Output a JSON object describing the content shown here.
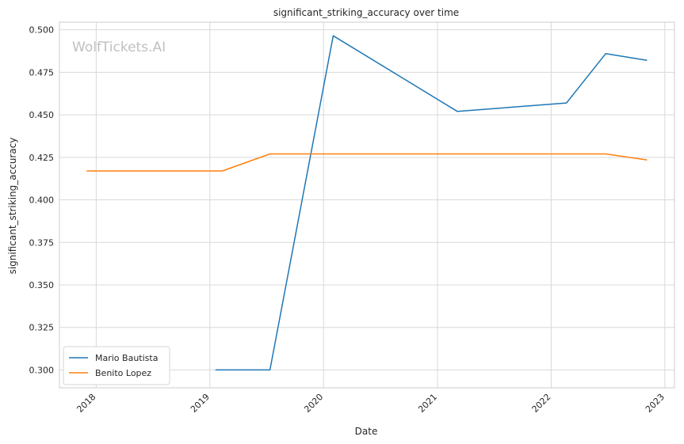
{
  "chart_data": {
    "type": "line",
    "title": "significant_striking_accuracy over time",
    "xlabel": "Date",
    "ylabel": "significant_striking_accuracy",
    "watermark": "WolfTickets.AI",
    "x_ticks": [
      "2018",
      "2019",
      "2020",
      "2021",
      "2022",
      "2023"
    ],
    "y_ticks": [
      "0.300",
      "0.325",
      "0.350",
      "0.375",
      "0.400",
      "0.425",
      "0.450",
      "0.475",
      "0.500"
    ],
    "xlim": [
      "2017-09-05",
      "2023-02-01"
    ],
    "ylim": [
      0.2895,
      0.5045
    ],
    "grid": true,
    "legend_position": "lower-left",
    "series": [
      {
        "name": "Mario Bautista",
        "color": "#1f77b4",
        "x": [
          "2019-01-19",
          "2019-07-13",
          "2020-02-01",
          "2021-03-06",
          "2022-02-19",
          "2022-06-25",
          "2022-11-05"
        ],
        "y": [
          0.3,
          0.3,
          0.4965,
          0.452,
          0.457,
          0.486,
          0.482
        ]
      },
      {
        "name": "Benito Lopez",
        "color": "#ff7f0e",
        "x": [
          "2017-12-01",
          "2019-02-10",
          "2019-07-13",
          "2022-06-25",
          "2022-11-05"
        ],
        "y": [
          0.417,
          0.417,
          0.427,
          0.427,
          0.4235
        ]
      }
    ]
  }
}
